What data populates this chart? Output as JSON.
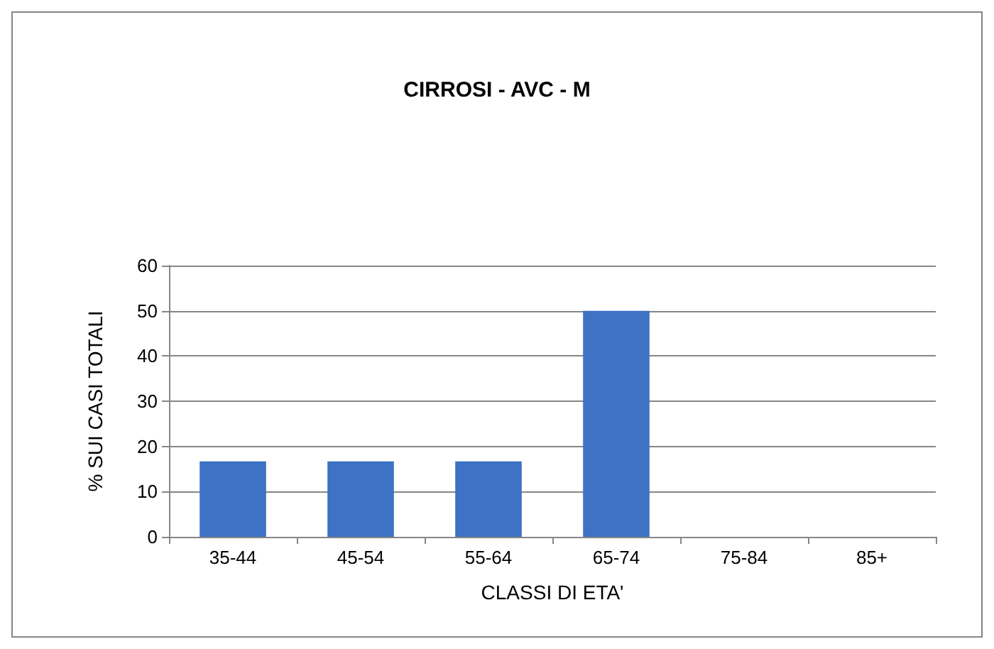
{
  "chart_data": {
    "type": "bar",
    "title": "CIRROSI - AVC - M",
    "xlabel": "CLASSI DI ETA'",
    "ylabel": "% SUI CASI TOTALI",
    "categories": [
      "35-44",
      "45-54",
      "55-64",
      "65-74",
      "75-84",
      "85+"
    ],
    "values": [
      16.7,
      16.7,
      16.7,
      50,
      0,
      0
    ],
    "color": "#3d72c4",
    "ylim": [
      0,
      60
    ],
    "yticks": [
      0,
      10,
      20,
      30,
      40,
      50,
      60
    ],
    "grid": "y"
  }
}
